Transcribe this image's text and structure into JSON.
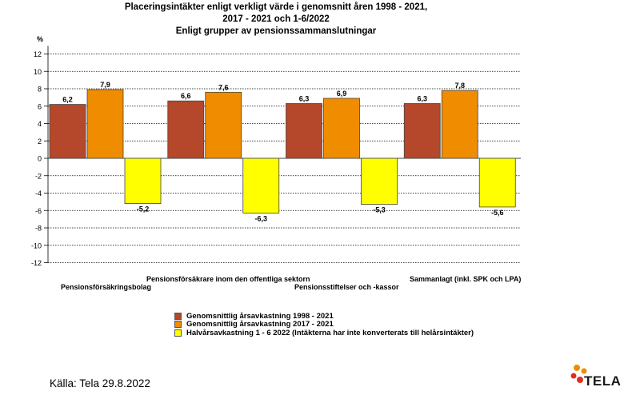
{
  "title": {
    "line1": "Placeringsintäkter enligt verkligt värde i genomsnitt åren 1998 - 2021,",
    "line2": "2017 - 2021 och 1-6/2022",
    "line3": "Enligt grupper av pensionssammanslutningar"
  },
  "chart_data": {
    "type": "bar",
    "ylabel": "%",
    "ylim": [
      -12,
      12
    ],
    "yticks": [
      12,
      10,
      8,
      6,
      4,
      2,
      0,
      -2,
      -4,
      -6,
      -8,
      -10,
      -12
    ],
    "grid": true,
    "categories": [
      "Pensionsförsäkringsbolag",
      "Pensionsförsäkrare inom den offentliga sektorn",
      "Pensionsstiftelser och -kassor",
      "Sammanlagt (inkl. SPK och LPA)"
    ],
    "series": [
      {
        "name": "Genomsnittlig årsavkastning 1998 - 2021",
        "color": "#b5472a",
        "values": [
          6.2,
          6.6,
          6.3,
          6.3
        ],
        "labels": [
          "6,2",
          "6,6",
          "6,3",
          "6,3"
        ]
      },
      {
        "name": "Genomsnittlig årsavkastning 2017 - 2021",
        "color": "#f08c00",
        "values": [
          7.9,
          7.6,
          6.9,
          7.8
        ],
        "labels": [
          "7,9",
          "7,6",
          "6,9",
          "7,8"
        ]
      },
      {
        "name": "Halvårsavkastning 1 - 6 2022 (Intäkterna har inte konverterats till helårsintäkter)",
        "color": "#ffff00",
        "values": [
          -5.2,
          -6.3,
          -5.3,
          -5.6
        ],
        "labels": [
          "-5,2",
          "-6,3",
          "-5,3",
          "-5,6"
        ]
      }
    ],
    "legend_position": "bottom"
  },
  "source": "Källa: Tela 29.8.2022",
  "logo": {
    "text": "TELA",
    "colors": [
      "#f08c00",
      "#e52d1e"
    ]
  }
}
